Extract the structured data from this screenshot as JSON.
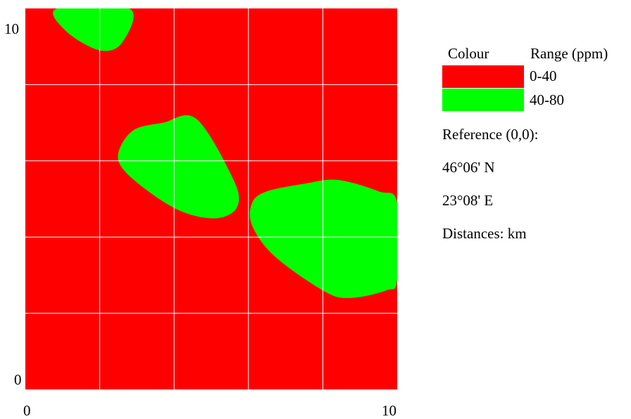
{
  "colors": {
    "low": "#ff0000",
    "high": "#00ff00",
    "grid": "#ffffff"
  },
  "axes": {
    "x_min_label": "0",
    "x_max_label": "10",
    "y_min_label": "0",
    "y_max_label": "10"
  },
  "legend": {
    "colour_header": "Colour",
    "range_header": "Range (ppm)",
    "items": [
      {
        "range": "0-40",
        "color": "#ff0000"
      },
      {
        "range": "40-80",
        "color": "#00ff00"
      }
    ]
  },
  "info": {
    "reference": "Reference (0,0):",
    "latitude": "46°06' N",
    "longitude": "23°08' E",
    "distances": "Distances: km"
  },
  "chart_data": {
    "type": "heatmap",
    "xlim": [
      0,
      10
    ],
    "ylim": [
      0,
      10
    ],
    "grid": true,
    "grid_spacing": 2,
    "background_range": "0-40",
    "regions": [
      {
        "name": "top-blob",
        "range": "40-80",
        "points": [
          [
            0.85,
            10
          ],
          [
            2.8,
            10
          ],
          [
            2.6,
            9.1
          ],
          [
            2.0,
            8.9
          ],
          [
            1.1,
            9.4
          ]
        ]
      },
      {
        "name": "center-blob",
        "range": "40-80",
        "points": [
          [
            2.5,
            6.2
          ],
          [
            2.9,
            6.8
          ],
          [
            3.7,
            7.0
          ],
          [
            4.6,
            7.1
          ],
          [
            5.6,
            5.5
          ],
          [
            5.7,
            4.8
          ],
          [
            5.2,
            4.5
          ],
          [
            4.4,
            4.6
          ],
          [
            3.6,
            5.0
          ],
          [
            2.7,
            5.7
          ]
        ]
      },
      {
        "name": "right-blob",
        "range": "40-80",
        "points": [
          [
            6.1,
            4.9
          ],
          [
            6.5,
            5.2
          ],
          [
            7.5,
            5.4
          ],
          [
            8.4,
            5.5
          ],
          [
            9.5,
            5.2
          ],
          [
            10,
            4.9
          ],
          [
            10,
            2.9
          ],
          [
            9.7,
            2.6
          ],
          [
            8.7,
            2.4
          ],
          [
            8.0,
            2.6
          ],
          [
            6.7,
            3.5
          ],
          [
            6.1,
            4.3
          ]
        ]
      }
    ]
  }
}
